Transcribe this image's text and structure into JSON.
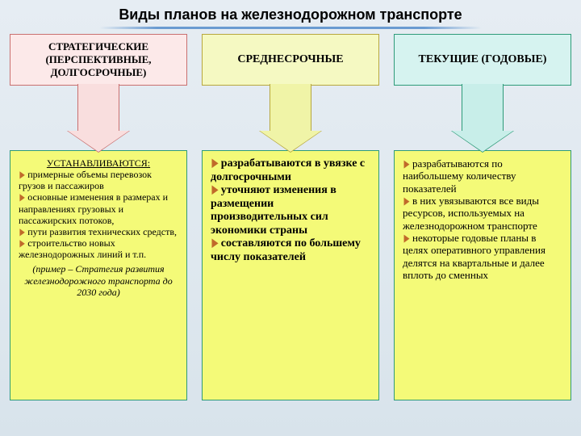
{
  "title": "Виды планов на железнодорожном транспорте",
  "title_fontsize": 18,
  "columns": [
    {
      "header": "СТРАТЕГИЧЕСКИЕ (ПЕРСПЕКТИВНЫЕ, ДОЛГОСРОЧНЫЕ)",
      "header_bg": "#fce9e9",
      "header_border": "#c96f6f",
      "header_fontsize": 13,
      "arrow_fill": "#f9dede",
      "arrow_border": "#c96f6f",
      "body_bg": "#f4fa78",
      "body_border": "#2e9b79",
      "bullet_color": "#c06a2a",
      "body_fontsize": 12,
      "intro": "УСТАНАВЛИВАЮТСЯ:",
      "bullets": [
        "примерные объемы перевозок грузов и пассажиров",
        "основные изменения в размерах и направлениях грузовых и пассажирских потоков,",
        "пути развития технических средств,",
        "строительство новых железнодорожных линий и т.п."
      ],
      "tail_italic": "(пример – Стратегия развития железнодорожного транспорта до 2030 года)"
    },
    {
      "header": "СРЕДНЕСРОЧНЫЕ",
      "header_bg": "#f5f9c2",
      "header_border": "#b7a73d",
      "header_fontsize": 14,
      "arrow_fill": "#f0f4a7",
      "arrow_border": "#b7a73d",
      "body_bg": "#f4fa78",
      "body_border": "#2e9b79",
      "bullet_color": "#c06a2a",
      "body_fontsize": 14,
      "intro": "",
      "bullets": [
        "разрабатываются в увязке с долгосрочными",
        "уточняют изменения в размещении производительных сил экономики страны",
        "составляются по большему числу показателей"
      ],
      "tail_italic": ""
    },
    {
      "header": "ТЕКУЩИЕ (ГОДОВЫЕ)",
      "header_bg": "#d6f3f0",
      "header_border": "#2e9b79",
      "header_fontsize": 14,
      "arrow_fill": "#c8eee9",
      "arrow_border": "#2e9b79",
      "body_bg": "#f4fa78",
      "body_border": "#2e9b79",
      "bullet_color": "#c06a2a",
      "body_fontsize": 13,
      "intro": "",
      "bullets": [
        "разрабатываются по наибольшему количеству показателей",
        "в них увязываются все виды ресурсов, используемых на железнодорожном транспорте",
        "некоторые годовые планы в целях оперативного управления делятся на квартальные и далее вплоть до сменных"
      ],
      "tail_italic": ""
    }
  ]
}
